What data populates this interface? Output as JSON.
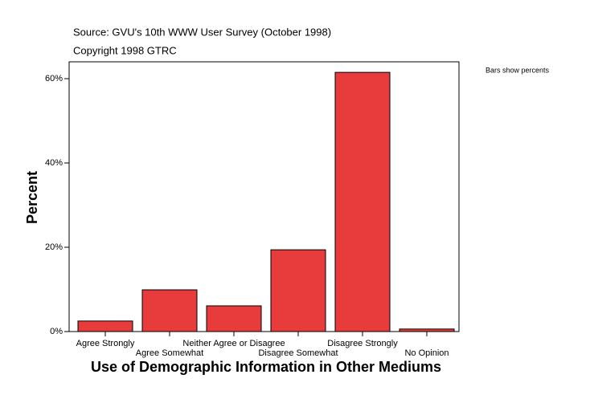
{
  "chart_data": {
    "type": "bar",
    "title": "Use of Demographic Information in Other Mediums",
    "source": "Source: GVU's 10th WWW User Survey (October 1998)",
    "copyright": "Copyright 1998 GTRC",
    "note": "Bars show percents",
    "y_label": "Percent",
    "categories": [
      "Agree Strongly",
      "Agree Somewhat",
      "Neither Agree or Disagree",
      "Disagree Somewhat",
      "Disagree Strongly",
      "No Opinion"
    ],
    "values": [
      2.5,
      9.9,
      6.1,
      19.4,
      61.5,
      0.6
    ],
    "color": "#e83c3c",
    "ylim": [
      0,
      64
    ],
    "yticks": [
      {
        "value": 0,
        "label": "0%"
      },
      {
        "value": 20,
        "label": "20%"
      },
      {
        "value": 40,
        "label": "40%"
      },
      {
        "value": 60,
        "label": "60%"
      }
    ],
    "grid": false
  }
}
